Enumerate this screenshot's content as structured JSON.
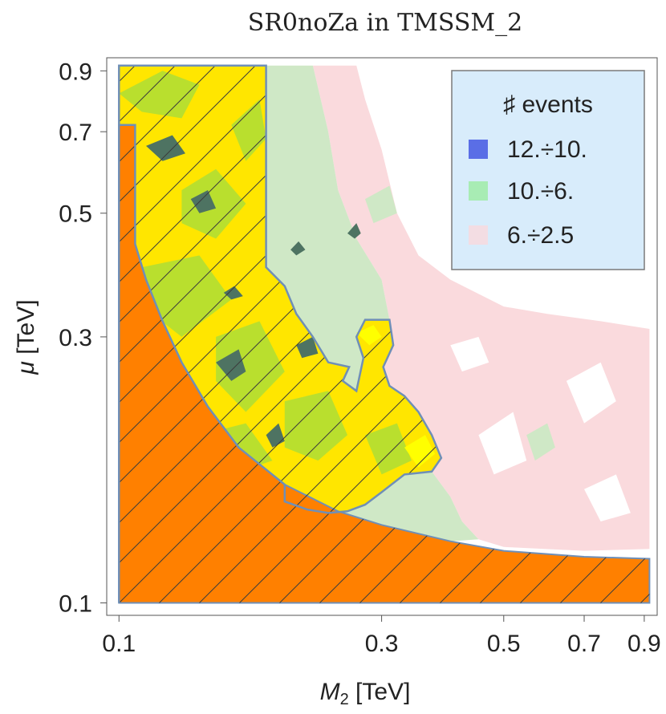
{
  "chart_data": {
    "type": "contour",
    "title": "SR0noZa in TMSSM_2",
    "xlabel": {
      "symbol": "M",
      "subscript": "2",
      "unit": " [TeV]"
    },
    "ylabel": {
      "symbol": "μ",
      "unit": " [TeV]"
    },
    "xscale": "log",
    "yscale": "log",
    "xlim": [
      0.095,
      0.95
    ],
    "ylim": [
      0.095,
      0.95
    ],
    "xticks": [
      {
        "value": 0.1,
        "label": "0.1"
      },
      {
        "value": 0.3,
        "label": "0.3"
      },
      {
        "value": 0.5,
        "label": "0.5"
      },
      {
        "value": 0.7,
        "label": "0.7"
      },
      {
        "value": 0.9,
        "label": "0.9"
      }
    ],
    "yticks": [
      {
        "value": 0.1,
        "label": "0.1"
      },
      {
        "value": 0.3,
        "label": "0.3"
      },
      {
        "value": 0.5,
        "label": "0.5"
      },
      {
        "value": 0.7,
        "label": "0.7"
      },
      {
        "value": 0.9,
        "label": "0.9"
      }
    ],
    "legend": {
      "title": "♯ events",
      "position": "top-right",
      "entries": [
        {
          "label": "12.÷10.",
          "color": "#5a6ee6"
        },
        {
          "label": "10.÷6.",
          "color": "#a8ecb4"
        },
        {
          "label": "6.÷2.5",
          "color": "#f3dde3"
        }
      ]
    },
    "colors": {
      "excluded": "#ff8000",
      "allowed_region": "#ffe600",
      "green_contour": "#b9df2e",
      "dark_contour": "#4e7362",
      "light_green": "#cfe8c6",
      "pink": "#fadadd",
      "outline": "#6f8fb7",
      "legend_bg": "#d8ecfb"
    },
    "regions": {
      "excluded_boundary": [
        [
          0.1,
          0.1
        ],
        [
          0.1,
          0.72
        ],
        [
          0.107,
          0.72
        ],
        [
          0.107,
          0.44
        ],
        [
          0.112,
          0.38
        ],
        [
          0.12,
          0.32
        ],
        [
          0.13,
          0.27
        ],
        [
          0.145,
          0.225
        ],
        [
          0.165,
          0.19
        ],
        [
          0.2,
          0.163
        ],
        [
          0.25,
          0.146
        ],
        [
          0.3,
          0.138
        ],
        [
          0.4,
          0.129
        ],
        [
          0.5,
          0.124
        ],
        [
          0.7,
          0.121
        ],
        [
          0.92,
          0.12
        ],
        [
          0.92,
          0.1
        ]
      ],
      "hatched_boundary": [
        [
          0.1,
          0.1
        ],
        [
          0.1,
          0.92
        ],
        [
          0.185,
          0.92
        ],
        [
          0.185,
          0.4
        ],
        [
          0.2,
          0.37
        ],
        [
          0.21,
          0.33
        ],
        [
          0.225,
          0.3
        ],
        [
          0.24,
          0.27
        ],
        [
          0.262,
          0.265
        ],
        [
          0.255,
          0.25
        ],
        [
          0.27,
          0.24
        ],
        [
          0.278,
          0.275
        ],
        [
          0.27,
          0.3
        ],
        [
          0.28,
          0.322
        ],
        [
          0.31,
          0.322
        ],
        [
          0.315,
          0.29
        ],
        [
          0.302,
          0.265
        ],
        [
          0.31,
          0.245
        ],
        [
          0.33,
          0.235
        ],
        [
          0.35,
          0.22
        ],
        [
          0.37,
          0.2
        ],
        [
          0.385,
          0.182
        ],
        [
          0.37,
          0.172
        ],
        [
          0.33,
          0.17
        ],
        [
          0.3,
          0.158
        ],
        [
          0.28,
          0.15
        ],
        [
          0.26,
          0.146
        ],
        [
          0.24,
          0.145
        ],
        [
          0.22,
          0.147
        ],
        [
          0.2,
          0.152
        ],
        [
          0.2,
          0.163
        ],
        [
          0.165,
          0.19
        ],
        [
          0.145,
          0.225
        ],
        [
          0.13,
          0.27
        ],
        [
          0.12,
          0.32
        ],
        [
          0.112,
          0.38
        ],
        [
          0.107,
          0.44
        ],
        [
          0.107,
          0.72
        ],
        [
          0.1,
          0.72
        ]
      ],
      "light_green_boundary": [
        [
          0.185,
          0.92
        ],
        [
          0.225,
          0.92
        ],
        [
          0.24,
          0.7
        ],
        [
          0.25,
          0.55
        ],
        [
          0.27,
          0.45
        ],
        [
          0.3,
          0.38
        ],
        [
          0.31,
          0.322
        ],
        [
          0.28,
          0.322
        ],
        [
          0.27,
          0.3
        ],
        [
          0.278,
          0.275
        ],
        [
          0.27,
          0.24
        ],
        [
          0.255,
          0.25
        ],
        [
          0.262,
          0.265
        ],
        [
          0.24,
          0.27
        ],
        [
          0.225,
          0.3
        ],
        [
          0.21,
          0.33
        ],
        [
          0.2,
          0.37
        ],
        [
          0.185,
          0.4
        ]
      ],
      "lower_green_boundary": [
        [
          0.22,
          0.147
        ],
        [
          0.26,
          0.146
        ],
        [
          0.3,
          0.158
        ],
        [
          0.33,
          0.17
        ],
        [
          0.37,
          0.172
        ],
        [
          0.4,
          0.155
        ],
        [
          0.42,
          0.14
        ],
        [
          0.45,
          0.13
        ],
        [
          0.4,
          0.129
        ],
        [
          0.3,
          0.138
        ],
        [
          0.25,
          0.146
        ]
      ],
      "pink_boundary": [
        [
          0.225,
          0.92
        ],
        [
          0.27,
          0.92
        ],
        [
          0.28,
          0.8
        ],
        [
          0.3,
          0.65
        ],
        [
          0.32,
          0.5
        ],
        [
          0.35,
          0.42
        ],
        [
          0.4,
          0.38
        ],
        [
          0.5,
          0.34
        ],
        [
          0.6,
          0.33
        ],
        [
          0.75,
          0.32
        ],
        [
          0.92,
          0.31
        ],
        [
          0.92,
          0.125
        ],
        [
          0.7,
          0.124
        ],
        [
          0.5,
          0.126
        ],
        [
          0.45,
          0.13
        ],
        [
          0.42,
          0.14
        ],
        [
          0.4,
          0.155
        ],
        [
          0.37,
          0.172
        ],
        [
          0.385,
          0.182
        ],
        [
          0.37,
          0.2
        ],
        [
          0.35,
          0.22
        ],
        [
          0.33,
          0.235
        ],
        [
          0.31,
          0.245
        ],
        [
          0.302,
          0.265
        ],
        [
          0.315,
          0.29
        ],
        [
          0.31,
          0.322
        ],
        [
          0.3,
          0.38
        ],
        [
          0.27,
          0.45
        ],
        [
          0.25,
          0.55
        ],
        [
          0.24,
          0.7
        ]
      ],
      "green_patches": [
        [
          [
            0.1,
            0.82
          ],
          [
            0.12,
            0.9
          ],
          [
            0.14,
            0.85
          ],
          [
            0.13,
            0.74
          ],
          [
            0.11,
            0.76
          ]
        ],
        [
          [
            0.13,
            0.55
          ],
          [
            0.15,
            0.6
          ],
          [
            0.17,
            0.52
          ],
          [
            0.15,
            0.45
          ],
          [
            0.13,
            0.48
          ]
        ],
        [
          [
            0.11,
            0.4
          ],
          [
            0.14,
            0.42
          ],
          [
            0.16,
            0.35
          ],
          [
            0.13,
            0.3
          ],
          [
            0.115,
            0.33
          ]
        ],
        [
          [
            0.15,
            0.3
          ],
          [
            0.18,
            0.32
          ],
          [
            0.2,
            0.26
          ],
          [
            0.17,
            0.22
          ],
          [
            0.15,
            0.25
          ]
        ],
        [
          [
            0.16,
            0.72
          ],
          [
            0.18,
            0.8
          ],
          [
            0.185,
            0.68
          ],
          [
            0.17,
            0.62
          ]
        ],
        [
          [
            0.2,
            0.23
          ],
          [
            0.24,
            0.24
          ],
          [
            0.26,
            0.2
          ],
          [
            0.23,
            0.18
          ],
          [
            0.2,
            0.19
          ]
        ],
        [
          [
            0.14,
            0.2
          ],
          [
            0.17,
            0.21
          ],
          [
            0.19,
            0.18
          ],
          [
            0.16,
            0.17
          ]
        ],
        [
          [
            0.28,
            0.2
          ],
          [
            0.32,
            0.21
          ],
          [
            0.34,
            0.18
          ],
          [
            0.3,
            0.17
          ]
        ]
      ],
      "dark_patches": [
        [
          [
            0.112,
            0.66
          ],
          [
            0.125,
            0.69
          ],
          [
            0.132,
            0.64
          ],
          [
            0.12,
            0.62
          ]
        ],
        [
          [
            0.135,
            0.53
          ],
          [
            0.145,
            0.55
          ],
          [
            0.15,
            0.51
          ],
          [
            0.14,
            0.5
          ]
        ],
        [
          [
            0.15,
            0.27
          ],
          [
            0.165,
            0.285
          ],
          [
            0.17,
            0.26
          ],
          [
            0.16,
            0.25
          ]
        ],
        [
          [
            0.21,
            0.29
          ],
          [
            0.225,
            0.3
          ],
          [
            0.23,
            0.28
          ],
          [
            0.215,
            0.275
          ]
        ],
        [
          [
            0.205,
            0.43
          ],
          [
            0.212,
            0.445
          ],
          [
            0.218,
            0.43
          ],
          [
            0.21,
            0.42
          ]
        ],
        [
          [
            0.155,
            0.36
          ],
          [
            0.162,
            0.37
          ],
          [
            0.168,
            0.355
          ],
          [
            0.16,
            0.35
          ]
        ],
        [
          [
            0.26,
            0.46
          ],
          [
            0.27,
            0.48
          ],
          [
            0.275,
            0.46
          ],
          [
            0.268,
            0.45
          ]
        ],
        [
          [
            0.185,
            0.2
          ],
          [
            0.195,
            0.21
          ],
          [
            0.2,
            0.195
          ],
          [
            0.19,
            0.19
          ]
        ]
      ],
      "yellow_highlights": [
        [
          [
            0.33,
            0.19
          ],
          [
            0.36,
            0.2
          ],
          [
            0.375,
            0.185
          ],
          [
            0.35,
            0.175
          ]
        ],
        [
          [
            0.27,
            0.305
          ],
          [
            0.29,
            0.315
          ],
          [
            0.3,
            0.3
          ],
          [
            0.285,
            0.29
          ]
        ]
      ],
      "light_green_patches": [
        [
          [
            0.55,
            0.2
          ],
          [
            0.6,
            0.21
          ],
          [
            0.62,
            0.19
          ],
          [
            0.57,
            0.18
          ]
        ],
        [
          [
            0.28,
            0.53
          ],
          [
            0.31,
            0.56
          ],
          [
            0.32,
            0.5
          ],
          [
            0.29,
            0.48
          ]
        ]
      ],
      "white_holes": [
        [
          [
            0.45,
            0.2
          ],
          [
            0.52,
            0.22
          ],
          [
            0.55,
            0.18
          ],
          [
            0.48,
            0.17
          ]
        ],
        [
          [
            0.65,
            0.25
          ],
          [
            0.75,
            0.27
          ],
          [
            0.8,
            0.23
          ],
          [
            0.7,
            0.21
          ]
        ],
        [
          [
            0.7,
            0.16
          ],
          [
            0.8,
            0.17
          ],
          [
            0.85,
            0.145
          ],
          [
            0.75,
            0.14
          ]
        ],
        [
          [
            0.4,
            0.29
          ],
          [
            0.45,
            0.3
          ],
          [
            0.47,
            0.27
          ],
          [
            0.42,
            0.26
          ]
        ]
      ]
    }
  }
}
